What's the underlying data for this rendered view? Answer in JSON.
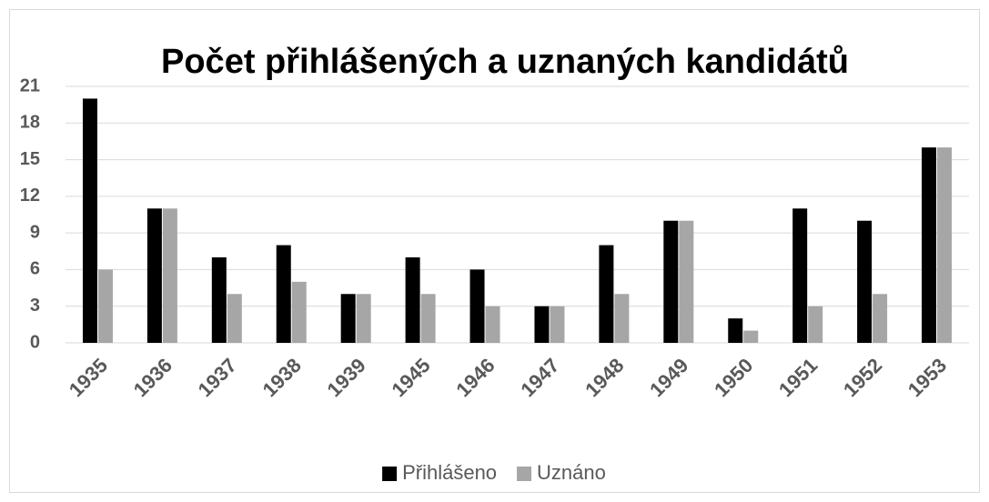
{
  "chart_data": {
    "type": "bar",
    "title": "Počet přihlášených a uznaných kandidátů",
    "categories": [
      "1935",
      "1936",
      "1937",
      "1938",
      "1939",
      "1945",
      "1946",
      "1947",
      "1948",
      "1949",
      "1950",
      "1951",
      "1952",
      "1953"
    ],
    "series": [
      {
        "name": "Přihlášeno",
        "color": "#000000",
        "values": [
          20,
          11,
          7,
          8,
          4,
          7,
          6,
          3,
          8,
          10,
          2,
          11,
          10,
          16
        ]
      },
      {
        "name": "Uznáno",
        "color": "#a6a6a6",
        "values": [
          6,
          11,
          4,
          5,
          4,
          4,
          3,
          3,
          4,
          10,
          1,
          3,
          4,
          16
        ]
      }
    ],
    "ylim": [
      0,
      21
    ],
    "yticks": [
      0,
      3,
      6,
      9,
      12,
      15,
      18,
      21
    ],
    "grid": true,
    "legend": "bottom"
  }
}
